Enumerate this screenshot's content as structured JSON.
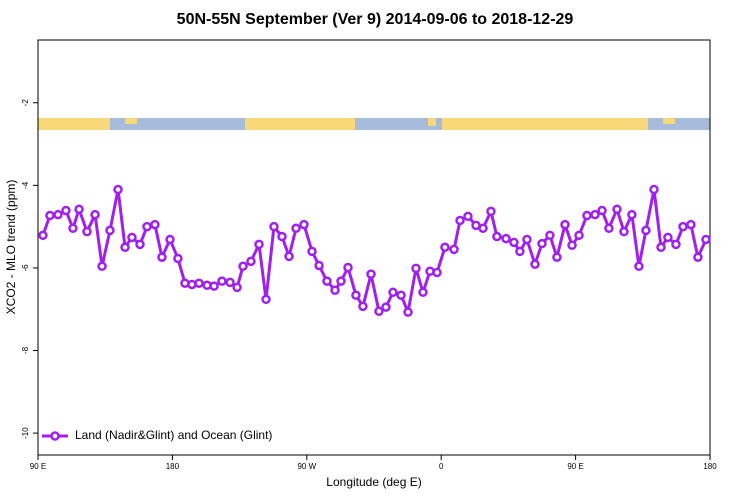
{
  "chart_data": {
    "type": "line",
    "title": "50N-55N September (Ver 9)   2014-09-06 to 2018-12-29",
    "x_label": "Longitude (deg E)",
    "y_label": "XCO2 - MLO trend (ppm)",
    "xlim": [
      90,
      540
    ],
    "xticks": [
      {
        "value": 90,
        "label": "90 E"
      },
      180,
      {
        "value": 270,
        "label": "90 W"
      },
      {
        "value": 360,
        "label": "0"
      },
      {
        "value": 450,
        "label": "90 E"
      },
      {
        "value": 540,
        "label": "180"
      }
    ],
    "ylim": [
      -10.53,
      -0.48
    ],
    "yticks": [
      -2,
      -4,
      -6,
      -8,
      -10
    ],
    "legend": "bottom-left",
    "x": [
      93.3,
      98.0,
      103.4,
      108.7,
      113.4,
      117.5,
      122.8,
      128.2,
      132.9,
      138.2,
      143.6,
      148.3,
      152.9,
      158.3,
      163.0,
      168.3,
      173.0,
      178.4,
      183.7,
      188.4,
      193.1,
      197.8,
      203.2,
      207.9,
      213.2,
      218.6,
      223.3,
      227.3,
      232.6,
      238.0,
      242.7,
      248.0,
      253.4,
      258.1,
      262.8,
      268.1,
      273.5,
      278.2,
      283.5,
      288.9,
      292.9,
      297.6,
      302.9,
      307.6,
      313.0,
      318.3,
      323.0,
      327.7,
      333.1,
      337.8,
      343.1,
      347.8,
      352.5,
      357.2,
      362.5,
      368.6,
      372.6,
      377.9,
      383.3,
      388.0,
      393.3,
      397.3,
      403.4,
      408.7,
      412.7,
      417.4,
      422.8,
      427.5,
      432.8,
      437.5,
      442.9,
      447.6,
      452.3,
      457.6,
      463.0,
      467.7,
      472.3,
      477.7,
      482.4,
      487.7,
      492.4,
      497.1,
      502.5,
      507.2,
      511.8,
      517.2,
      521.9,
      527.2,
      531.9,
      537.3
    ],
    "series": [
      {
        "name": "Land (Nadir&Glint) and Ocean (Glint)",
        "color": "#a020f0",
        "values": [
          -5.21,
          -4.73,
          -4.71,
          -4.61,
          -5.04,
          -4.58,
          -5.12,
          -4.71,
          -5.96,
          -5.09,
          -4.1,
          -5.5,
          -5.26,
          -5.43,
          -5.0,
          -4.95,
          -5.74,
          -5.31,
          -5.77,
          -6.37,
          -6.4,
          -6.37,
          -6.42,
          -6.44,
          -6.32,
          -6.35,
          -6.47,
          -5.96,
          -5.84,
          -5.43,
          -6.76,
          -5.0,
          -5.24,
          -5.72,
          -5.04,
          -4.95,
          -5.6,
          -5.94,
          -6.32,
          -6.54,
          -6.32,
          -5.99,
          -6.66,
          -6.93,
          -6.15,
          -7.05,
          -6.95,
          -6.59,
          -6.66,
          -7.07,
          -6.01,
          -6.59,
          -6.08,
          -6.11,
          -5.5,
          -5.55,
          -4.85,
          -4.75,
          -4.97,
          -5.04,
          -4.63,
          -5.24,
          -5.29,
          -5.38,
          -5.6,
          -5.31,
          -5.91,
          -5.41,
          -5.21,
          -5.74,
          -4.95,
          -5.45,
          -5.21,
          -4.73,
          -4.71,
          -4.61,
          -5.04,
          -4.58,
          -5.12,
          -4.71,
          -5.96,
          -5.09,
          -4.1,
          -5.5,
          -5.26,
          -5.43,
          -5.0,
          -4.95,
          -5.74,
          -5.31
        ]
      }
    ]
  }
}
